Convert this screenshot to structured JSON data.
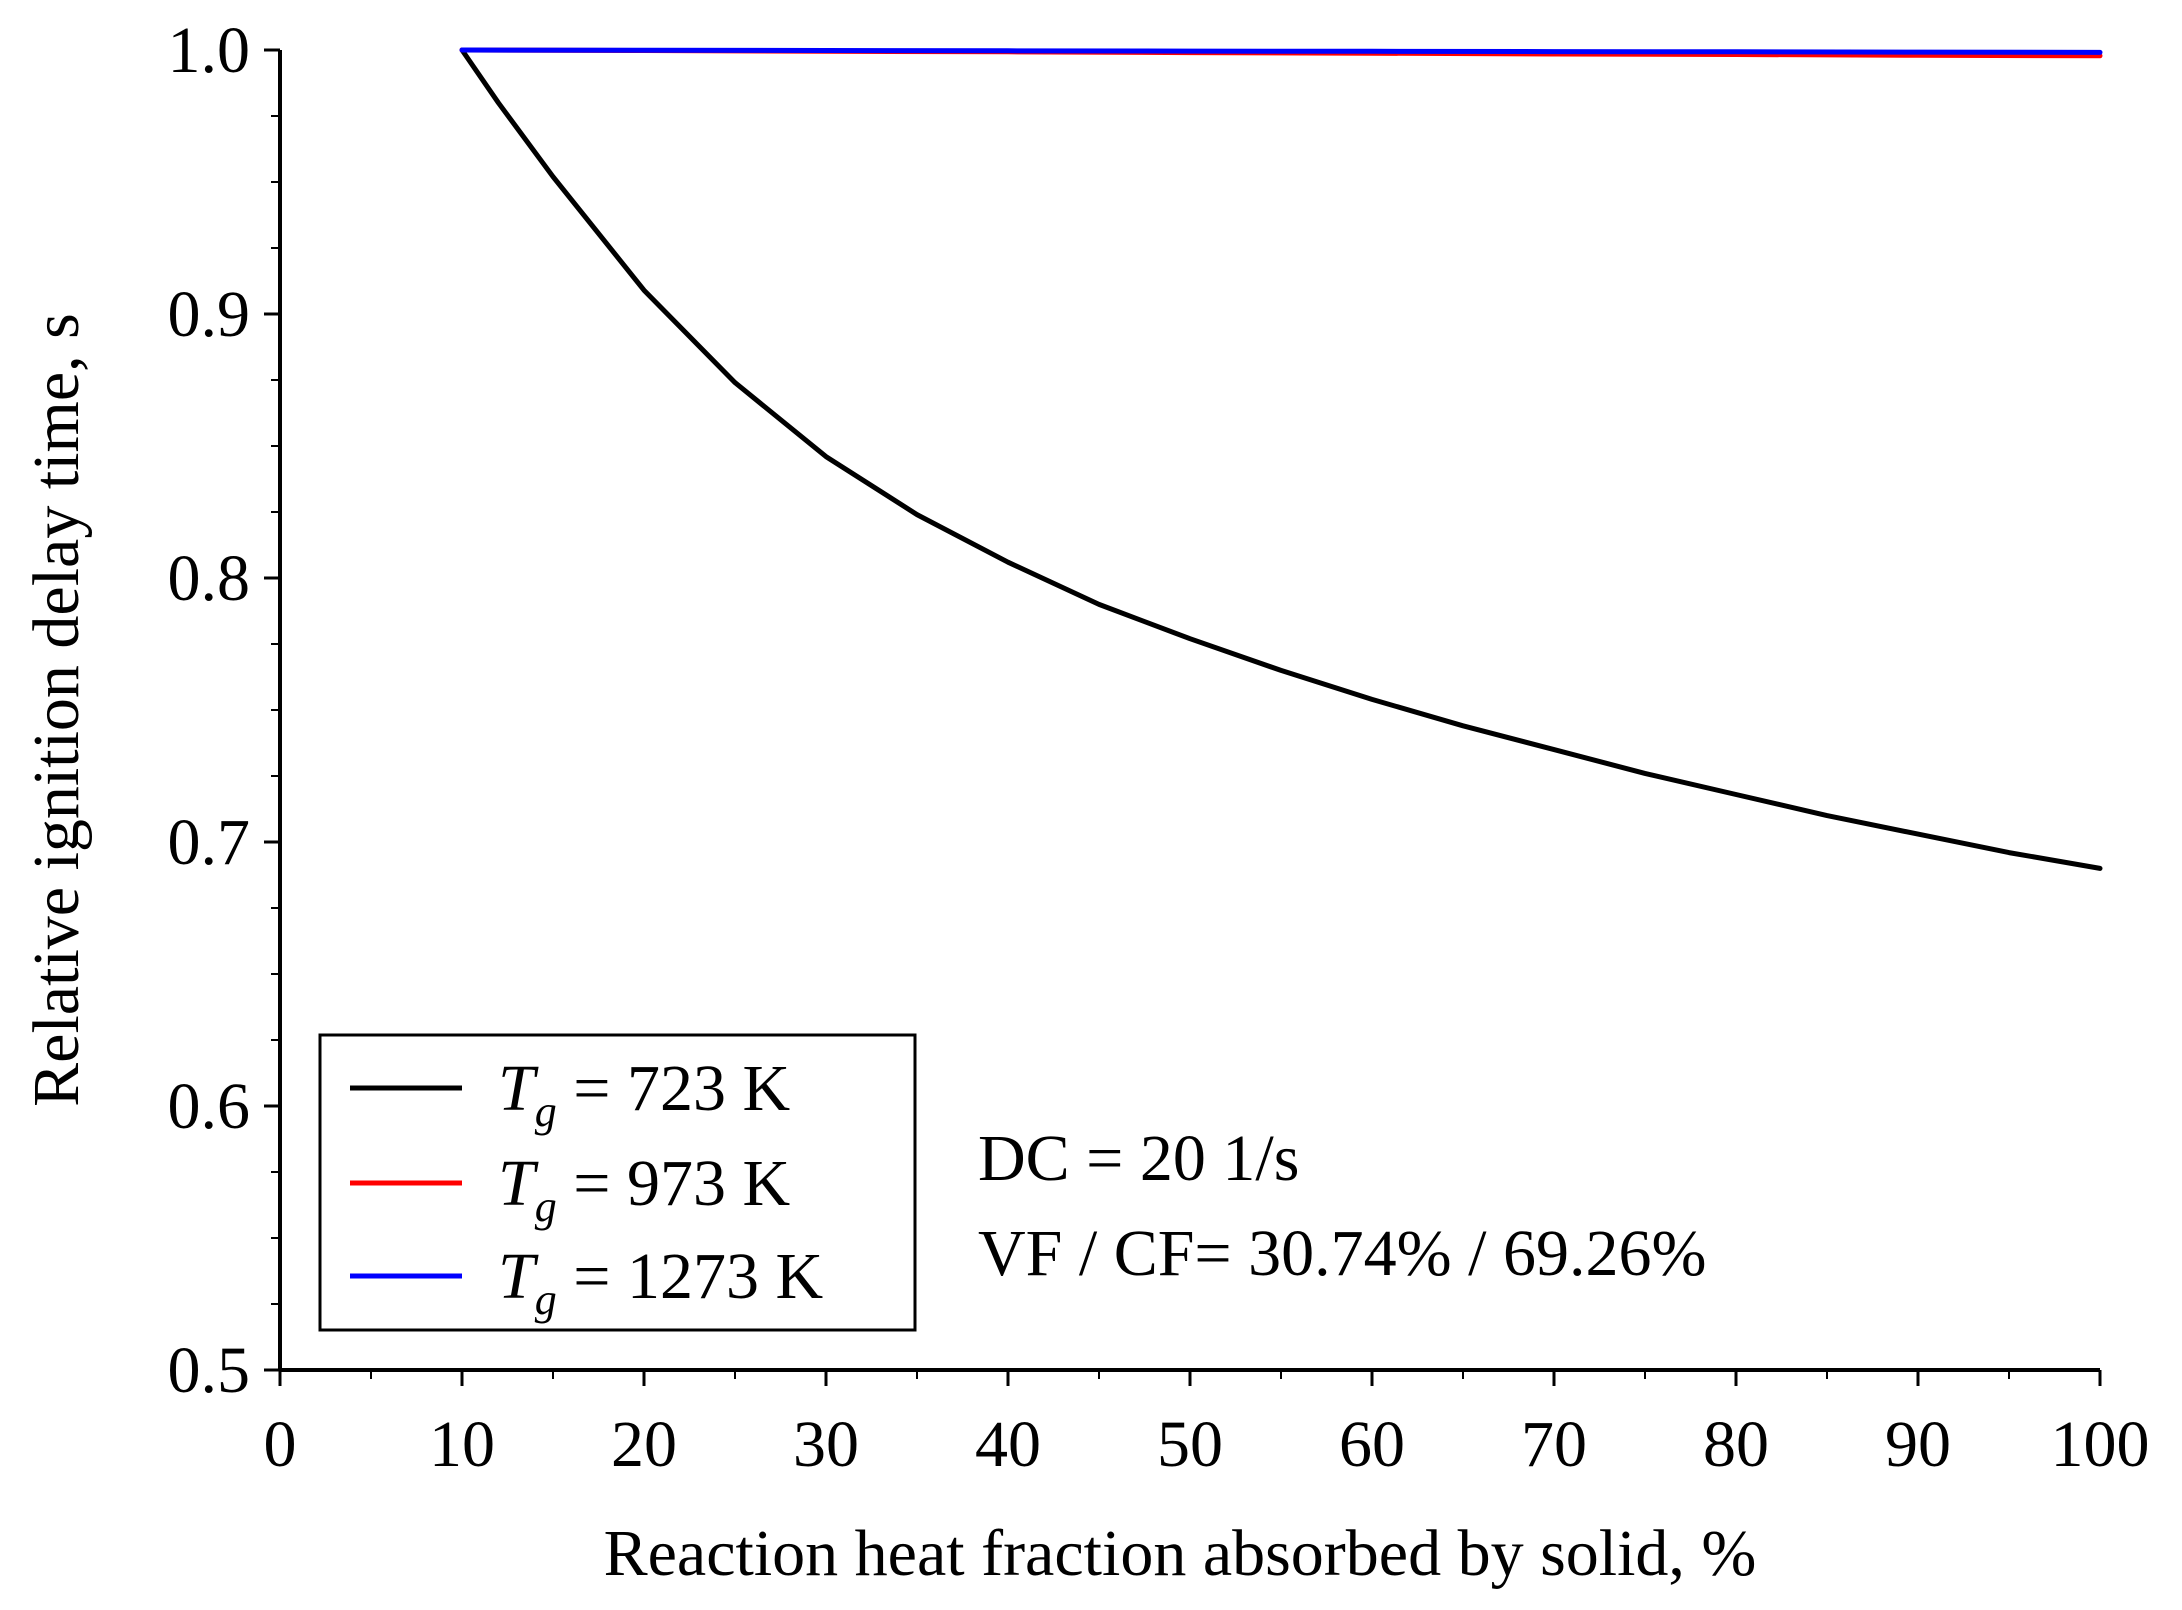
{
  "chart_data": {
    "type": "line",
    "title": "",
    "xlabel": "Reaction heat fraction absorbed by solid, %",
    "ylabel": "Relative ignition delay time, s",
    "xlim": [
      0,
      100
    ],
    "ylim": [
      0.5,
      1.0
    ],
    "xticks": [
      0,
      10,
      20,
      30,
      40,
      50,
      60,
      70,
      80,
      90,
      100
    ],
    "xtick_labels": [
      "0",
      "10",
      "20",
      "30",
      "40",
      "50",
      "60",
      "70",
      "80",
      "90",
      "100"
    ],
    "yticks": [
      0.5,
      0.6,
      0.7,
      0.8,
      0.9,
      1.0
    ],
    "ytick_labels": [
      "0.5",
      "0.6",
      "0.7",
      "0.8",
      "0.9",
      "1.0"
    ],
    "grid": false,
    "legend_position": "bottom-left",
    "series": [
      {
        "name": "T_g = 723 K",
        "legend_var": "T",
        "legend_sub": "g",
        "legend_rest": " = 723 K",
        "color": "#000000",
        "x": [
          10,
          12,
          15,
          20,
          25,
          30,
          35,
          40,
          45,
          50,
          55,
          60,
          65,
          70,
          75,
          80,
          85,
          90,
          95,
          100
        ],
        "y": [
          1.0,
          0.98,
          0.952,
          0.909,
          0.874,
          0.846,
          0.824,
          0.806,
          0.79,
          0.777,
          0.765,
          0.754,
          0.744,
          0.735,
          0.726,
          0.718,
          0.71,
          0.703,
          0.696,
          0.69
        ]
      },
      {
        "name": "T_g = 973 K",
        "legend_var": "T",
        "legend_sub": "g",
        "legend_rest": " = 973 K",
        "color": "#ff0000",
        "x": [
          10,
          20,
          30,
          40,
          50,
          60,
          70,
          80,
          90,
          100
        ],
        "y": [
          1.0,
          0.9998,
          0.9995,
          0.9993,
          0.999,
          0.9988,
          0.9985,
          0.9983,
          0.998,
          0.9978
        ]
      },
      {
        "name": "T_g = 1273 K",
        "legend_var": "T",
        "legend_sub": "g",
        "legend_rest": " = 1273 K",
        "color": "#0000ff",
        "x": [
          10,
          20,
          30,
          40,
          50,
          60,
          70,
          80,
          90,
          100
        ],
        "y": [
          1.0,
          0.9999,
          0.9998,
          0.9997,
          0.9996,
          0.9995,
          0.9994,
          0.9993,
          0.9992,
          0.9991
        ]
      }
    ],
    "annotations": [
      "DC = 20 1/s",
      "VF / CF= 30.74% / 69.26%"
    ]
  }
}
